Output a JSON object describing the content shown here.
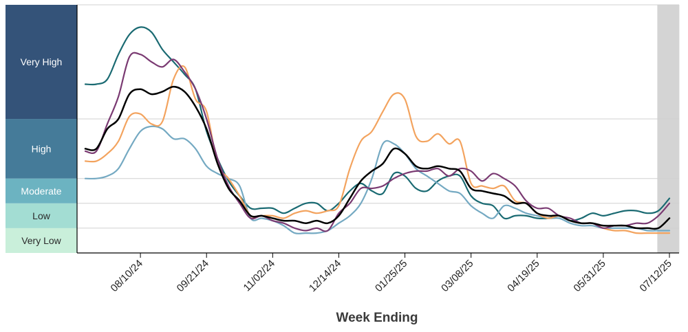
{
  "chart_data": {
    "type": "line",
    "xlabel": "Week Ending",
    "ylabel": "",
    "x_tick_labels": [
      "08/10/24",
      "09/21/24",
      "11/02/24",
      "12/14/24",
      "01/25/25",
      "03/08/25",
      "04/19/25",
      "05/31/25",
      "07/12/25"
    ],
    "x_tick_index": [
      5,
      11,
      17,
      23,
      29,
      35,
      41,
      47,
      53
    ],
    "x_range": [
      0,
      53
    ],
    "y_range": [
      0,
      10
    ],
    "y_level_scale": "relative (0 = bottom, 10 = top of Very High band)",
    "levels": [
      {
        "label": "Very Low",
        "from": 0,
        "to": 1,
        "color": "#c9efda",
        "text_color": "#2a2a2a"
      },
      {
        "label": "Low",
        "from": 1,
        "to": 2,
        "color": "#a3ddd3",
        "text_color": "#2a2a2a"
      },
      {
        "label": "Moderate",
        "from": 2,
        "to": 3,
        "color": "#6cb3c1",
        "text_color": "#ffffff"
      },
      {
        "label": "High",
        "from": 3,
        "to": 5.4,
        "color": "#457b99",
        "text_color": "#ffffff"
      },
      {
        "label": "Very High",
        "from": 5.4,
        "to": 10,
        "color": "#345379",
        "text_color": "#ffffff"
      }
    ],
    "shaded_region": {
      "x_from": 51.9,
      "x_to": 53.9,
      "color": "#d4d4d4"
    },
    "grid": true,
    "series": [
      {
        "color": "#1a6a72",
        "width": 2.2,
        "values": [
          6.8,
          6.8,
          7.0,
          8.0,
          8.8,
          9.1,
          8.9,
          8.2,
          7.7,
          7.2,
          6.6,
          4.9,
          3.8,
          2.9,
          2.3,
          1.8,
          1.8,
          1.8,
          1.6,
          1.8,
          2.0,
          2.0,
          1.7,
          2.0,
          2.5,
          2.8,
          2.5,
          2.4,
          3.2,
          3.1,
          2.6,
          2.5,
          2.9,
          3.1,
          3.1,
          2.3,
          2.0,
          1.9,
          1.4,
          1.5,
          1.5,
          1.4,
          1.4,
          1.5,
          1.3,
          1.4,
          1.6,
          1.5,
          1.6,
          1.7,
          1.7,
          1.6,
          1.7,
          2.2
        ]
      },
      {
        "color": "#74a9c2",
        "width": 2.2,
        "values": [
          3.0,
          3.0,
          3.1,
          3.4,
          4.2,
          4.9,
          5.1,
          5.0,
          4.6,
          4.6,
          4.2,
          3.5,
          3.2,
          3.0,
          2.7,
          1.4,
          1.4,
          1.3,
          1.1,
          0.8,
          0.8,
          0.8,
          0.9,
          1.2,
          1.5,
          2.0,
          3.0,
          4.4,
          4.4,
          4.0,
          3.4,
          3.1,
          2.8,
          2.5,
          2.4,
          1.9,
          1.6,
          1.4,
          1.9,
          1.8,
          1.6,
          1.5,
          1.4,
          1.4,
          1.2,
          1.1,
          1.1,
          1.0,
          1.0,
          1.0,
          1.0,
          0.9,
          0.9,
          0.9
        ]
      },
      {
        "color": "#f3a35e",
        "width": 2.2,
        "values": [
          3.7,
          3.7,
          4.0,
          4.5,
          5.5,
          5.6,
          5.2,
          5.3,
          7.0,
          7.5,
          6.2,
          5.7,
          3.6,
          3.0,
          2.3,
          1.5,
          1.5,
          1.5,
          1.4,
          1.6,
          1.7,
          1.6,
          1.7,
          1.9,
          3.4,
          4.5,
          4.9,
          5.7,
          6.4,
          6.2,
          4.7,
          4.5,
          4.8,
          4.4,
          4.5,
          2.8,
          2.7,
          2.6,
          2.7,
          2.1,
          2.0,
          1.6,
          1.4,
          1.5,
          1.3,
          1.2,
          1.2,
          1.0,
          0.9,
          0.9,
          0.8,
          0.8,
          0.8,
          0.8
        ]
      },
      {
        "color": "#7a3a72",
        "width": 2.2,
        "values": [
          4.1,
          4.1,
          5.2,
          6.3,
          7.9,
          8.0,
          7.7,
          7.5,
          7.8,
          7.3,
          6.6,
          5.4,
          3.8,
          2.7,
          2.0,
          1.4,
          1.5,
          1.3,
          1.2,
          1.0,
          0.9,
          1.0,
          0.9,
          1.6,
          2.0,
          2.6,
          2.6,
          2.7,
          3.0,
          3.2,
          3.3,
          3.3,
          3.4,
          3.1,
          3.4,
          3.3,
          2.9,
          3.2,
          3.0,
          2.7,
          2.1,
          1.8,
          1.8,
          1.5,
          1.4,
          1.2,
          1.2,
          1.0,
          1.1,
          1.1,
          1.2,
          1.2,
          1.5,
          2.0
        ]
      },
      {
        "color": "#000000",
        "width": 2.5,
        "values": [
          4.2,
          4.2,
          5.0,
          5.4,
          6.4,
          6.6,
          6.4,
          6.5,
          6.7,
          6.5,
          5.9,
          5.0,
          3.6,
          2.6,
          2.1,
          1.5,
          1.5,
          1.4,
          1.3,
          1.3,
          1.2,
          1.3,
          1.2,
          1.5,
          2.2,
          2.9,
          3.3,
          3.6,
          4.2,
          4.0,
          3.5,
          3.4,
          3.5,
          3.4,
          3.3,
          2.6,
          2.5,
          2.4,
          2.3,
          2.0,
          2.0,
          1.6,
          1.5,
          1.5,
          1.3,
          1.2,
          1.2,
          1.1,
          1.1,
          1.1,
          1.0,
          1.0,
          1.0,
          1.4
        ]
      }
    ]
  }
}
